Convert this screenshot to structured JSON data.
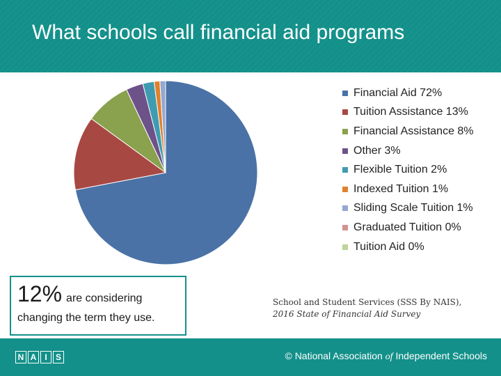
{
  "slide": {
    "title": "What schools call financial aid programs"
  },
  "chart_data": {
    "type": "pie",
    "title": "",
    "categories": [
      "Financial Aid",
      "Tuition Assistance",
      "Financial Assistance",
      "Other",
      "Flexible Tuition",
      "Indexed Tuition",
      "Sliding Scale Tuition",
      "Graduated Tuition",
      "Tuition Aid"
    ],
    "values": [
      72,
      13,
      8,
      3,
      2,
      1,
      1,
      0,
      0
    ],
    "colors": [
      "#4a72a6",
      "#a84843",
      "#8aa14e",
      "#6d528a",
      "#3f9cb0",
      "#e0812e",
      "#95a8cf",
      "#d29490",
      "#bcd59a"
    ],
    "legend_labels": [
      "Financial Aid 72%",
      "Tuition Assistance 13%",
      "Financial Assistance 8%",
      "Other 3%",
      "Flexible Tuition 2%",
      "Indexed Tuition 1%",
      "Sliding Scale Tuition 1%",
      "Graduated Tuition 0%",
      "Tuition Aid 0%"
    ],
    "legend_position": "right"
  },
  "callout": {
    "stat": "12%",
    "text1": "are considering",
    "text2": "changing the term they use."
  },
  "source": {
    "line1": "School and Student Services (SSS By NAIS),",
    "line2": "2016 State of Financial Aid Survey"
  },
  "footer": {
    "logo_letters": [
      "N",
      "A",
      "I",
      "S"
    ],
    "org_part1": "© National Association",
    "org_of": "of",
    "org_part2": "Independent Schools"
  }
}
